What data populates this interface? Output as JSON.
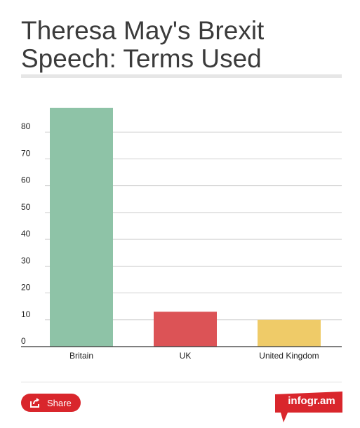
{
  "title": "Theresa May's Brexit Speech: Terms Used",
  "footer": {
    "share_label": "Share",
    "brand": "infogr.am"
  },
  "colors": {
    "bar_britain": "#8ec3a7",
    "bar_uk": "#dc5356",
    "bar_united_kingdom": "#efcb68",
    "share_button": "#d9262c"
  },
  "icons": [
    "share-icon"
  ],
  "chart_data": {
    "type": "bar",
    "categories": [
      "Britain",
      "UK",
      "United Kingdom"
    ],
    "values": [
      89,
      13,
      10
    ],
    "ylim": [
      0,
      90
    ],
    "yticks": [
      0,
      10,
      20,
      30,
      40,
      50,
      60,
      70,
      80
    ],
    "grid": true,
    "legend": "none",
    "xlabel": "",
    "ylabel": ""
  }
}
